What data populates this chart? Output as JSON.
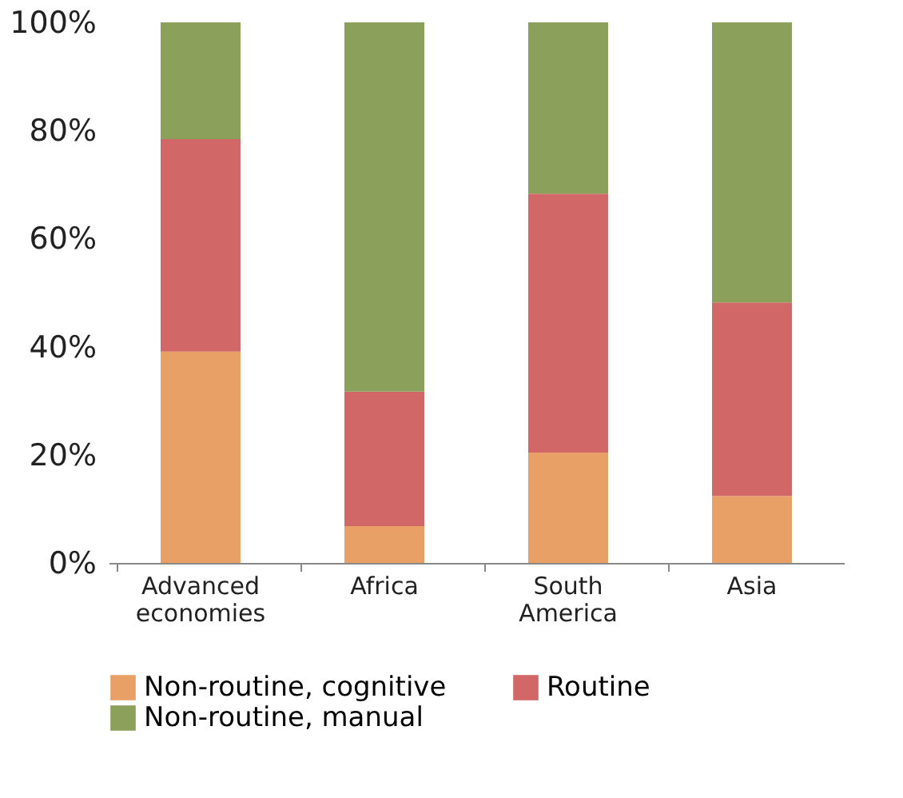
{
  "chart_data": {
    "type": "bar",
    "stacked": true,
    "categories": [
      "Advanced economies",
      "Africa",
      "South America",
      "Asia"
    ],
    "series": [
      {
        "name": "Non-routine, cognitive",
        "color": "#e8a066",
        "values": [
          39.1,
          6.8,
          20.4,
          12.4
        ]
      },
      {
        "name": "Routine",
        "color": "#d16767",
        "values": [
          39.3,
          24.9,
          47.9,
          35.8
        ]
      },
      {
        "name": "Non-routine, manual",
        "color": "#8ba05a",
        "values": [
          21.6,
          68.3,
          31.7,
          51.8
        ]
      }
    ],
    "ylim": [
      0,
      100
    ],
    "yticks": [
      {
        "value": 0,
        "label": "0%"
      },
      {
        "value": 20,
        "label": "20%"
      },
      {
        "value": 40,
        "label": "40%"
      },
      {
        "value": 60,
        "label": "60%"
      },
      {
        "value": 80,
        "label": "80%"
      },
      {
        "value": 100,
        "label": "100%"
      }
    ],
    "grid": false,
    "legend": "bottom"
  }
}
